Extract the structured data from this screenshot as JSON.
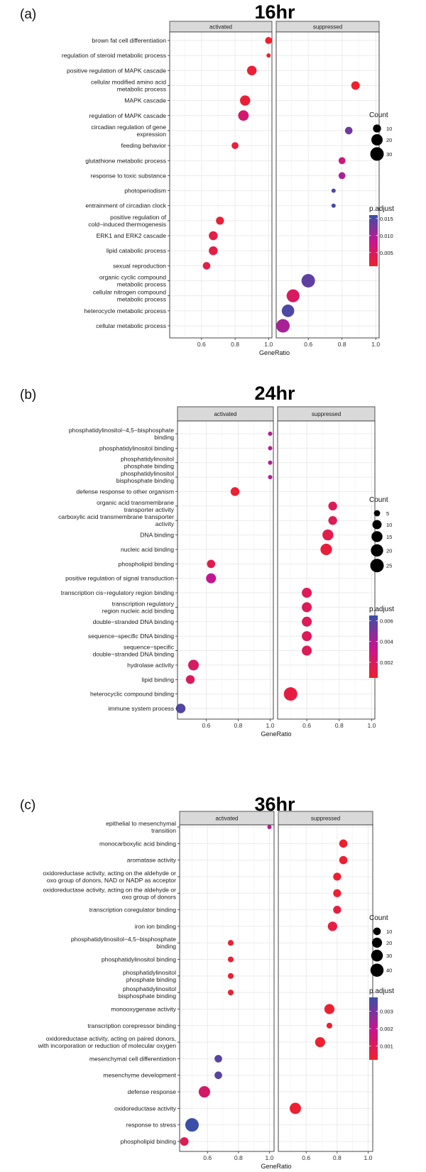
{
  "chart_data": [
    {
      "type": "scatter",
      "panel_label": "(a)",
      "title": "16hr",
      "xlabel": "GeneRatio",
      "ylabel": "",
      "facets": [
        "activated",
        "suppressed"
      ],
      "xlim": [
        0.41,
        1.02
      ],
      "xticks": [
        0.6,
        0.8,
        1.0
      ],
      "xtick_labels": [
        "0.6",
        "0.8",
        "1.0"
      ],
      "grid": true,
      "legend_position": "right",
      "size_legend": {
        "title": "Count",
        "breaks": [
          10,
          20,
          30
        ],
        "labels": [
          "10",
          "20",
          "30"
        ]
      },
      "color_legend": {
        "title": "p.adjust",
        "range": [
          0.001,
          0.016
        ],
        "breaks": [
          0.015,
          0.01,
          0.005
        ],
        "labels": [
          "0.015",
          "0.010",
          "0.005"
        ],
        "low_color": "#f0202a",
        "mid_color": "#c41591",
        "high_color": "#3a50a8"
      },
      "categories": [
        "brown fat cell differentiation",
        "regulation of steroid metabolic process",
        "positive regulation of MAPK cascade",
        "cellular modified amino acid\nmetabolic process",
        "MAPK cascade",
        "regulation of MAPK cascade",
        "circadian regulation of gene\nexpression",
        "feeding behavior",
        "glutathione metabolic process",
        "response to toxic substance",
        "photoperiodism",
        "entrainment of circadian clock",
        "positive regulation of\ncold−induced thermogenesis",
        "ERK1 and ERK2 cascade",
        "lipid catabolic process",
        "sexual reproduction",
        "organic cyclic compound\nmetabolic process",
        "cellular nitrogen compound\nmetabolic process",
        "heterocycle metabolic process",
        "cellular metabolic process"
      ],
      "points": [
        {
          "term": 0,
          "facet": "activated",
          "gene_ratio": 1.0,
          "count": 8,
          "p_adjust": 0.001
        },
        {
          "term": 1,
          "facet": "activated",
          "gene_ratio": 1.0,
          "count": 6,
          "p_adjust": 0.001
        },
        {
          "term": 2,
          "facet": "activated",
          "gene_ratio": 0.9,
          "count": 14,
          "p_adjust": 0.002
        },
        {
          "term": 3,
          "facet": "suppressed",
          "gene_ratio": 0.88,
          "count": 11,
          "p_adjust": 0.001
        },
        {
          "term": 4,
          "facet": "activated",
          "gene_ratio": 0.86,
          "count": 16,
          "p_adjust": 0.002
        },
        {
          "term": 5,
          "facet": "activated",
          "gene_ratio": 0.85,
          "count": 17,
          "p_adjust": 0.006
        },
        {
          "term": 6,
          "facet": "suppressed",
          "gene_ratio": 0.84,
          "count": 9,
          "p_adjust": 0.013
        },
        {
          "term": 7,
          "facet": "activated",
          "gene_ratio": 0.8,
          "count": 8,
          "p_adjust": 0.002
        },
        {
          "term": 8,
          "facet": "suppressed",
          "gene_ratio": 0.8,
          "count": 8,
          "p_adjust": 0.007
        },
        {
          "term": 9,
          "facet": "suppressed",
          "gene_ratio": 0.8,
          "count": 8,
          "p_adjust": 0.01
        },
        {
          "term": 10,
          "facet": "suppressed",
          "gene_ratio": 0.75,
          "count": 6,
          "p_adjust": 0.015
        },
        {
          "term": 11,
          "facet": "suppressed",
          "gene_ratio": 0.75,
          "count": 6,
          "p_adjust": 0.015
        },
        {
          "term": 12,
          "facet": "activated",
          "gene_ratio": 0.71,
          "count": 10,
          "p_adjust": 0.002
        },
        {
          "term": 13,
          "facet": "activated",
          "gene_ratio": 0.67,
          "count": 12,
          "p_adjust": 0.003
        },
        {
          "term": 14,
          "facet": "activated",
          "gene_ratio": 0.67,
          "count": 12,
          "p_adjust": 0.003
        },
        {
          "term": 15,
          "facet": "activated",
          "gene_ratio": 0.63,
          "count": 9,
          "p_adjust": 0.003
        },
        {
          "term": 16,
          "facet": "suppressed",
          "gene_ratio": 0.6,
          "count": 30,
          "p_adjust": 0.014
        },
        {
          "term": 17,
          "facet": "suppressed",
          "gene_ratio": 0.51,
          "count": 27,
          "p_adjust": 0.005
        },
        {
          "term": 18,
          "facet": "suppressed",
          "gene_ratio": 0.48,
          "count": 25,
          "p_adjust": 0.015
        },
        {
          "term": 19,
          "facet": "suppressed",
          "gene_ratio": 0.45,
          "count": 30,
          "p_adjust": 0.01
        }
      ]
    },
    {
      "type": "scatter",
      "panel_label": "(b)",
      "title": "24hr",
      "xlabel": "GeneRatio",
      "ylabel": "",
      "facets": [
        "activated",
        "suppressed"
      ],
      "xlim": [
        0.42,
        1.02
      ],
      "xticks": [
        0.6,
        0.8,
        1.0
      ],
      "xtick_labels": [
        "0.6",
        "0.8",
        "1.0"
      ],
      "grid": true,
      "legend_position": "right",
      "size_legend": {
        "title": "Count",
        "breaks": [
          5,
          10,
          15,
          20,
          25
        ],
        "labels": [
          "5",
          "10",
          "15",
          "20",
          "25"
        ]
      },
      "color_legend": {
        "title": "p.adjust",
        "range": [
          0.0005,
          0.0065
        ],
        "breaks": [
          0.006,
          0.004,
          0.002
        ],
        "labels": [
          "0.006",
          "0.004",
          "0.002"
        ],
        "low_color": "#f0202a",
        "mid_color": "#c41591",
        "high_color": "#3a50a8"
      },
      "categories": [
        "phosphatidylinositol−4,5−bisphosphate\nbinding",
        "phosphatidylinositol binding",
        "phosphatidylinositol\nphosphate binding",
        "phosphatidylinositol\nbisphosphate binding",
        "defense response to other organism",
        "organic acid transmembrane\ntransporter activity",
        "carboxylic acid  transmembrane transporter\nactivity",
        "DNA binding",
        "nucleic acid binding",
        "phospholipid binding",
        "positive regulation of signal transduction",
        "transcription cis−regulatory region binding",
        "transcription regulatory\nregion nucleic acid binding",
        "double−stranded DNA binding",
        "sequence−specific DNA binding",
        "sequence−specific\ndouble−stranded DNA binding",
        "hydrolase activity",
        "lipid binding",
        "heterocyclic compound binding",
        "immune system process"
      ],
      "points": [
        {
          "term": 0,
          "facet": "activated",
          "gene_ratio": 1.0,
          "count": 4,
          "p_adjust": 0.0038
        },
        {
          "term": 1,
          "facet": "activated",
          "gene_ratio": 1.0,
          "count": 4,
          "p_adjust": 0.0038
        },
        {
          "term": 2,
          "facet": "activated",
          "gene_ratio": 1.0,
          "count": 4,
          "p_adjust": 0.0038
        },
        {
          "term": 3,
          "facet": "activated",
          "gene_ratio": 1.0,
          "count": 4,
          "p_adjust": 0.0038
        },
        {
          "term": 4,
          "facet": "activated",
          "gene_ratio": 0.78,
          "count": 9,
          "p_adjust": 0.0008
        },
        {
          "term": 5,
          "facet": "suppressed",
          "gene_ratio": 0.76,
          "count": 9,
          "p_adjust": 0.0018
        },
        {
          "term": 6,
          "facet": "suppressed",
          "gene_ratio": 0.76,
          "count": 9,
          "p_adjust": 0.0018
        },
        {
          "term": 7,
          "facet": "suppressed",
          "gene_ratio": 0.73,
          "count": 15,
          "p_adjust": 0.0015
        },
        {
          "term": 8,
          "facet": "suppressed",
          "gene_ratio": 0.72,
          "count": 17,
          "p_adjust": 0.001
        },
        {
          "term": 9,
          "facet": "activated",
          "gene_ratio": 0.63,
          "count": 8,
          "p_adjust": 0.0015
        },
        {
          "term": 10,
          "facet": "activated",
          "gene_ratio": 0.63,
          "count": 12,
          "p_adjust": 0.0035
        },
        {
          "term": 11,
          "facet": "suppressed",
          "gene_ratio": 0.6,
          "count": 12,
          "p_adjust": 0.0018
        },
        {
          "term": 12,
          "facet": "suppressed",
          "gene_ratio": 0.6,
          "count": 12,
          "p_adjust": 0.0018
        },
        {
          "term": 13,
          "facet": "suppressed",
          "gene_ratio": 0.6,
          "count": 12,
          "p_adjust": 0.0018
        },
        {
          "term": 14,
          "facet": "suppressed",
          "gene_ratio": 0.6,
          "count": 12,
          "p_adjust": 0.0018
        },
        {
          "term": 15,
          "facet": "suppressed",
          "gene_ratio": 0.6,
          "count": 12,
          "p_adjust": 0.0018
        },
        {
          "term": 16,
          "facet": "activated",
          "gene_ratio": 0.52,
          "count": 14,
          "p_adjust": 0.0022
        },
        {
          "term": 17,
          "facet": "activated",
          "gene_ratio": 0.5,
          "count": 9,
          "p_adjust": 0.002
        },
        {
          "term": 18,
          "facet": "suppressed",
          "gene_ratio": 0.5,
          "count": 25,
          "p_adjust": 0.0012
        },
        {
          "term": 19,
          "facet": "activated",
          "gene_ratio": 0.44,
          "count": 11,
          "p_adjust": 0.006
        }
      ]
    },
    {
      "type": "scatter",
      "panel_label": "(c)",
      "title": "36hr",
      "xlabel": "GeneRatio",
      "ylabel": "",
      "facets": [
        "activated",
        "suppressed"
      ],
      "xlim": [
        0.42,
        1.03
      ],
      "xticks": [
        0.6,
        0.8,
        1.0
      ],
      "xtick_labels": [
        "0.6",
        "0.8",
        "1.0"
      ],
      "grid": true,
      "legend_position": "right",
      "size_legend": {
        "title": "Count",
        "breaks": [
          10,
          20,
          30,
          40
        ],
        "labels": [
          "10",
          "20",
          "30",
          "40"
        ]
      },
      "color_legend": {
        "title": "p.adjust",
        "range": [
          0.0002,
          0.0038
        ],
        "breaks": [
          0.003,
          0.002,
          0.001
        ],
        "labels": [
          "0.003",
          "0.002",
          "0.001"
        ],
        "low_color": "#f0202a",
        "mid_color": "#c41591",
        "high_color": "#3a50a8"
      },
      "categories": [
        "epithelial to mesenchymal\ntransition",
        "monocarboxylic acid binding",
        "aromatase activity",
        "oxidoreductase activity, acting on the aldehyde or\noxo group of donors, NAD or NADP as acceptor",
        "oxidoreductase activity, acting on the aldehyde or\noxo group of donors",
        "transcription coregulator binding",
        "iron ion binding",
        "phosphatidylinositol−4,5−bisphosphate\nbinding",
        "phosphatidylinositol binding",
        "phosphatidylinositol\nphosphate binding",
        "phosphatidylinositol\nbisphosphate binding",
        "monooxygenase activity",
        "transcription corepressor binding",
        "oxidoreductase activity, acting on paired donors,\nwith incorporation or reduction of molecular oxygen",
        "mesenchymal cell differentiation",
        "mesenchyme development",
        "defense response",
        "oxidoreductase activity",
        "response to stress",
        "phospholipid binding"
      ],
      "points": [
        {
          "term": 0,
          "facet": "activated",
          "gene_ratio": 1.0,
          "count": 5,
          "p_adjust": 0.0021
        },
        {
          "term": 1,
          "facet": "suppressed",
          "gene_ratio": 0.84,
          "count": 12,
          "p_adjust": 0.0003
        },
        {
          "term": 2,
          "facet": "suppressed",
          "gene_ratio": 0.84,
          "count": 12,
          "p_adjust": 0.0003
        },
        {
          "term": 3,
          "facet": "suppressed",
          "gene_ratio": 0.8,
          "count": 11,
          "p_adjust": 0.0003
        },
        {
          "term": 4,
          "facet": "suppressed",
          "gene_ratio": 0.8,
          "count": 11,
          "p_adjust": 0.0003
        },
        {
          "term": 5,
          "facet": "suppressed",
          "gene_ratio": 0.8,
          "count": 11,
          "p_adjust": 0.0006
        },
        {
          "term": 6,
          "facet": "suppressed",
          "gene_ratio": 0.77,
          "count": 17,
          "p_adjust": 0.0006
        },
        {
          "term": 7,
          "facet": "activated",
          "gene_ratio": 0.75,
          "count": 6,
          "p_adjust": 0.0003
        },
        {
          "term": 8,
          "facet": "activated",
          "gene_ratio": 0.75,
          "count": 6,
          "p_adjust": 0.0003
        },
        {
          "term": 9,
          "facet": "activated",
          "gene_ratio": 0.75,
          "count": 6,
          "p_adjust": 0.0003
        },
        {
          "term": 10,
          "facet": "activated",
          "gene_ratio": 0.75,
          "count": 6,
          "p_adjust": 0.0003
        },
        {
          "term": 11,
          "facet": "suppressed",
          "gene_ratio": 0.75,
          "count": 20,
          "p_adjust": 0.0003
        },
        {
          "term": 12,
          "facet": "suppressed",
          "gene_ratio": 0.75,
          "count": 6,
          "p_adjust": 0.0003
        },
        {
          "term": 13,
          "facet": "suppressed",
          "gene_ratio": 0.69,
          "count": 20,
          "p_adjust": 0.0003
        },
        {
          "term": 14,
          "facet": "activated",
          "gene_ratio": 0.67,
          "count": 10,
          "p_adjust": 0.0034
        },
        {
          "term": 15,
          "facet": "activated",
          "gene_ratio": 0.67,
          "count": 10,
          "p_adjust": 0.0034
        },
        {
          "term": 16,
          "facet": "activated",
          "gene_ratio": 0.58,
          "count": 28,
          "p_adjust": 0.0013
        },
        {
          "term": 17,
          "facet": "suppressed",
          "gene_ratio": 0.53,
          "count": 27,
          "p_adjust": 0.0003
        },
        {
          "term": 18,
          "facet": "activated",
          "gene_ratio": 0.5,
          "count": 43,
          "p_adjust": 0.0038
        },
        {
          "term": 19,
          "facet": "activated",
          "gene_ratio": 0.45,
          "count": 13,
          "p_adjust": 0.0009
        }
      ]
    }
  ]
}
